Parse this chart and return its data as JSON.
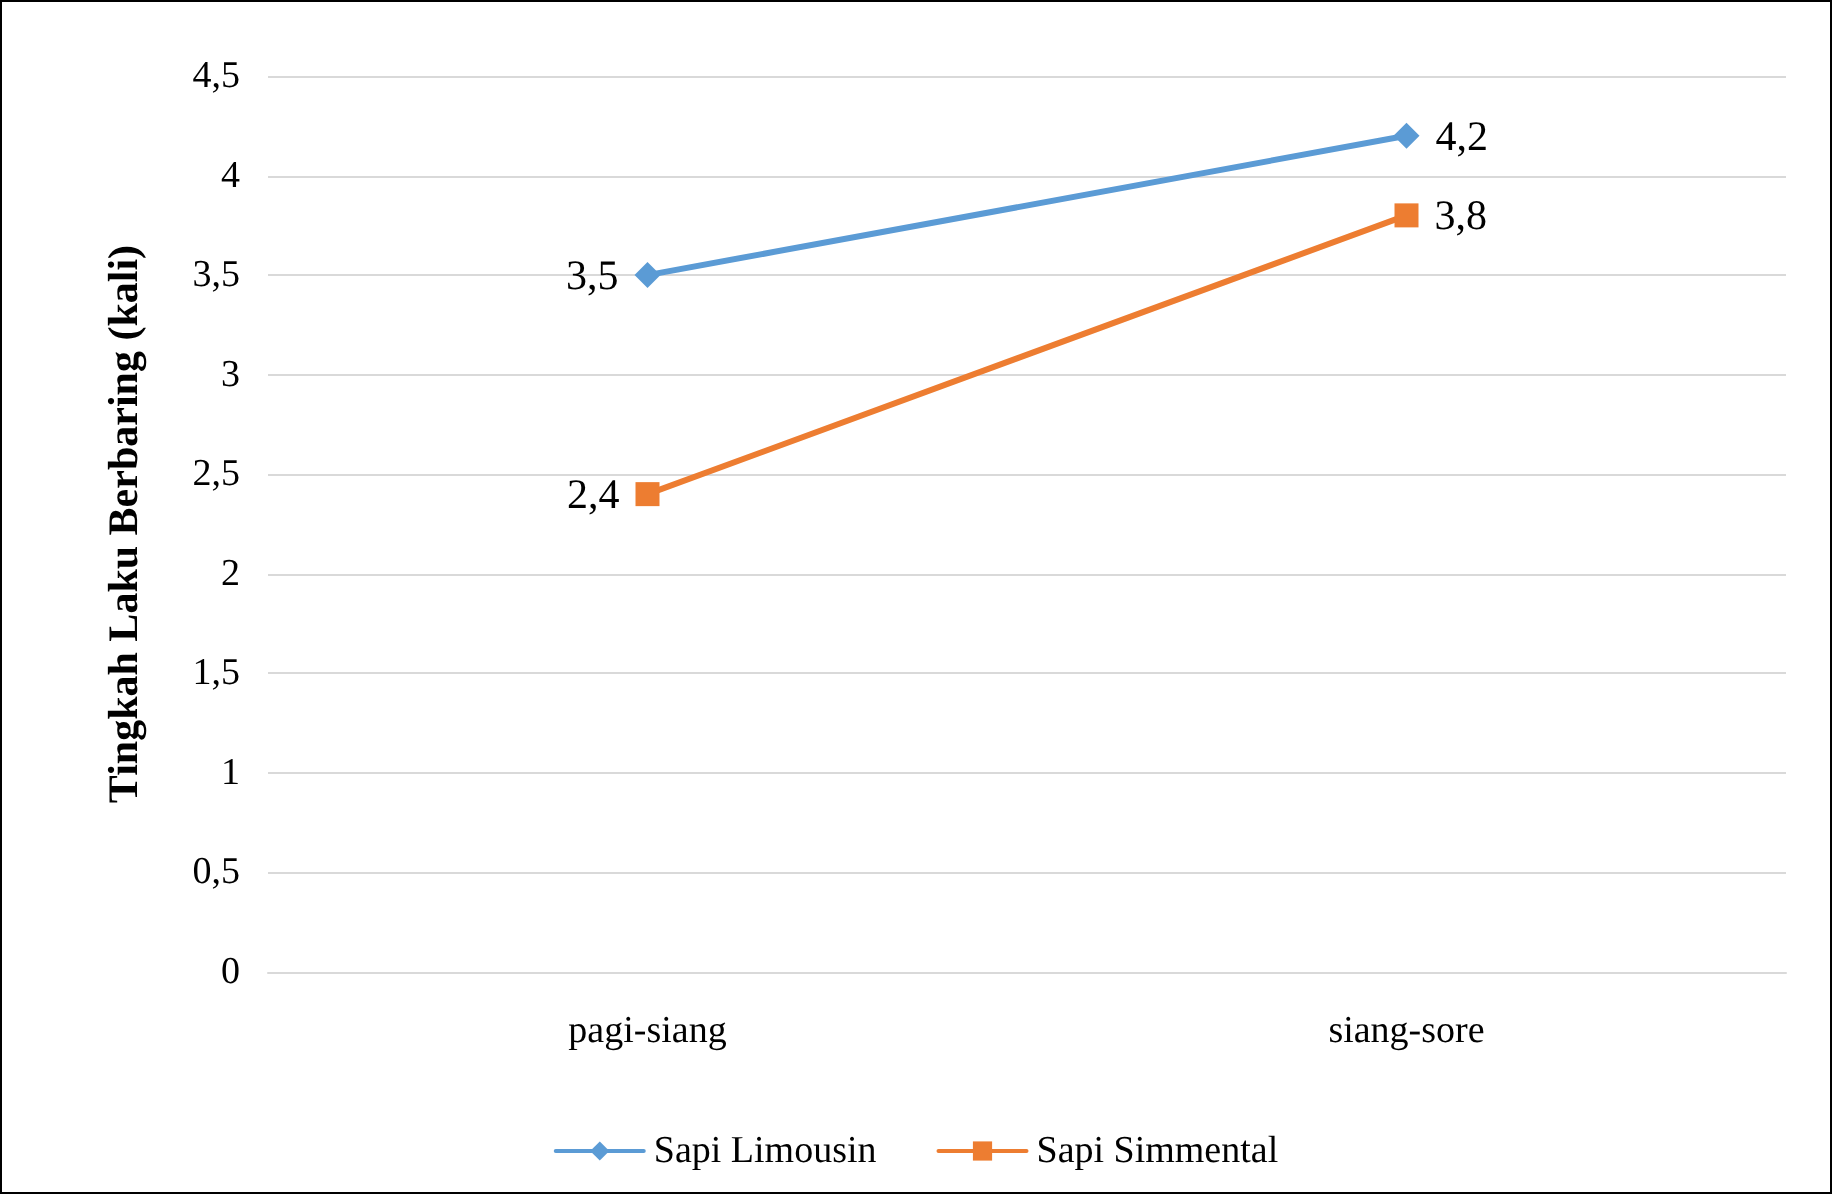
{
  "chart_data": {
    "type": "line",
    "ylabel": "Tingkah Laku Berbaring (kali)",
    "categories": [
      "pagi-siang",
      "siang-sore"
    ],
    "series": [
      {
        "name": "Sapi Limousin",
        "color": "#5b9bd5",
        "marker": "diamond",
        "values": [
          3.5,
          4.2
        ],
        "value_labels": [
          "3,5",
          "4,2"
        ]
      },
      {
        "name": "Sapi Simmental",
        "color": "#ed7d31",
        "marker": "square",
        "values": [
          2.4,
          3.8
        ],
        "value_labels": [
          "2,4",
          "3,8"
        ]
      }
    ],
    "ylim": [
      0,
      4.5
    ],
    "yticks": [
      {
        "value": 0,
        "label": "0"
      },
      {
        "value": 0.5,
        "label": "0,5"
      },
      {
        "value": 1,
        "label": "1"
      },
      {
        "value": 1.5,
        "label": "1,5"
      },
      {
        "value": 2,
        "label": "2"
      },
      {
        "value": 2.5,
        "label": "2,5"
      },
      {
        "value": 3,
        "label": "3"
      },
      {
        "value": 3.5,
        "label": "3,5"
      },
      {
        "value": 4,
        "label": "4"
      },
      {
        "value": 4.5,
        "label": "4,5"
      }
    ],
    "grid": true,
    "legend": "bottom",
    "line_style": "solid"
  }
}
